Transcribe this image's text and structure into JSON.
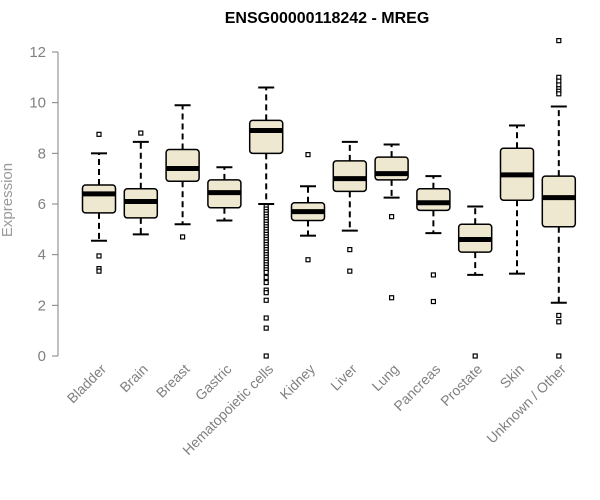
{
  "chart_data": {
    "type": "box",
    "title": "ENSG00000118242 - MREG",
    "xlabel": "",
    "ylabel": "Expression",
    "ylim": [
      0,
      12
    ],
    "yticks": [
      0,
      2,
      4,
      6,
      8,
      10,
      12
    ],
    "colors": {
      "box_fill": "#efe8d1",
      "box_stroke": "#000000",
      "axis": "#808080"
    },
    "categories": [
      "Bladder",
      "Brain",
      "Breast",
      "Gastric",
      "Hematopoietic cells",
      "Kidney",
      "Liver",
      "Lung",
      "Pancreas",
      "Prostate",
      "Skin",
      "Unknown / Other"
    ],
    "boxes": [
      {
        "whisker_low": 4.55,
        "q1": 5.65,
        "median": 6.4,
        "q3": 6.75,
        "whisker_high": 8.0,
        "outliers": [
          8.75,
          3.95,
          3.45,
          3.35
        ]
      },
      {
        "whisker_low": 4.8,
        "q1": 5.45,
        "median": 6.1,
        "q3": 6.6,
        "whisker_high": 8.45,
        "outliers": [
          8.8
        ]
      },
      {
        "whisker_low": 5.2,
        "q1": 6.9,
        "median": 7.4,
        "q3": 8.15,
        "whisker_high": 9.9,
        "outliers": [
          4.7
        ]
      },
      {
        "whisker_low": 5.35,
        "q1": 5.85,
        "median": 6.45,
        "q3": 6.95,
        "whisker_high": 7.45,
        "outliers": []
      },
      {
        "whisker_low": 6.0,
        "q1": 8.0,
        "median": 8.9,
        "q3": 9.3,
        "whisker_high": 10.6,
        "outliers": [
          5.9,
          5.8,
          5.7,
          5.6,
          5.5,
          5.4,
          5.3,
          5.2,
          5.1,
          5.0,
          4.9,
          4.8,
          4.7,
          4.6,
          4.5,
          4.4,
          4.3,
          4.2,
          4.1,
          4.0,
          3.9,
          3.8,
          3.7,
          3.6,
          3.5,
          3.4,
          3.3,
          3.1,
          2.9,
          2.6,
          2.5,
          2.2,
          1.5,
          1.1,
          0.0
        ]
      },
      {
        "whisker_low": 4.75,
        "q1": 5.35,
        "median": 5.7,
        "q3": 6.05,
        "whisker_high": 6.7,
        "outliers": [
          7.95,
          3.8
        ]
      },
      {
        "whisker_low": 4.95,
        "q1": 6.5,
        "median": 7.0,
        "q3": 7.7,
        "whisker_high": 8.45,
        "outliers": [
          4.2,
          3.35
        ]
      },
      {
        "whisker_low": 6.25,
        "q1": 6.95,
        "median": 7.2,
        "q3": 7.85,
        "whisker_high": 8.35,
        "outliers": [
          5.5,
          2.3
        ]
      },
      {
        "whisker_low": 4.85,
        "q1": 5.75,
        "median": 6.05,
        "q3": 6.6,
        "whisker_high": 7.1,
        "outliers": [
          3.2,
          2.15
        ]
      },
      {
        "whisker_low": 3.2,
        "q1": 4.1,
        "median": 4.6,
        "q3": 5.2,
        "whisker_high": 5.9,
        "outliers": [
          0.0
        ]
      },
      {
        "whisker_low": 3.25,
        "q1": 6.15,
        "median": 7.15,
        "q3": 8.2,
        "whisker_high": 9.1,
        "outliers": []
      },
      {
        "whisker_low": 2.1,
        "q1": 5.1,
        "median": 6.25,
        "q3": 7.1,
        "whisker_high": 9.85,
        "outliers": [
          12.45,
          11.0,
          10.85,
          10.7,
          10.55,
          10.45,
          10.35,
          1.6,
          1.35,
          0.0
        ]
      }
    ]
  }
}
